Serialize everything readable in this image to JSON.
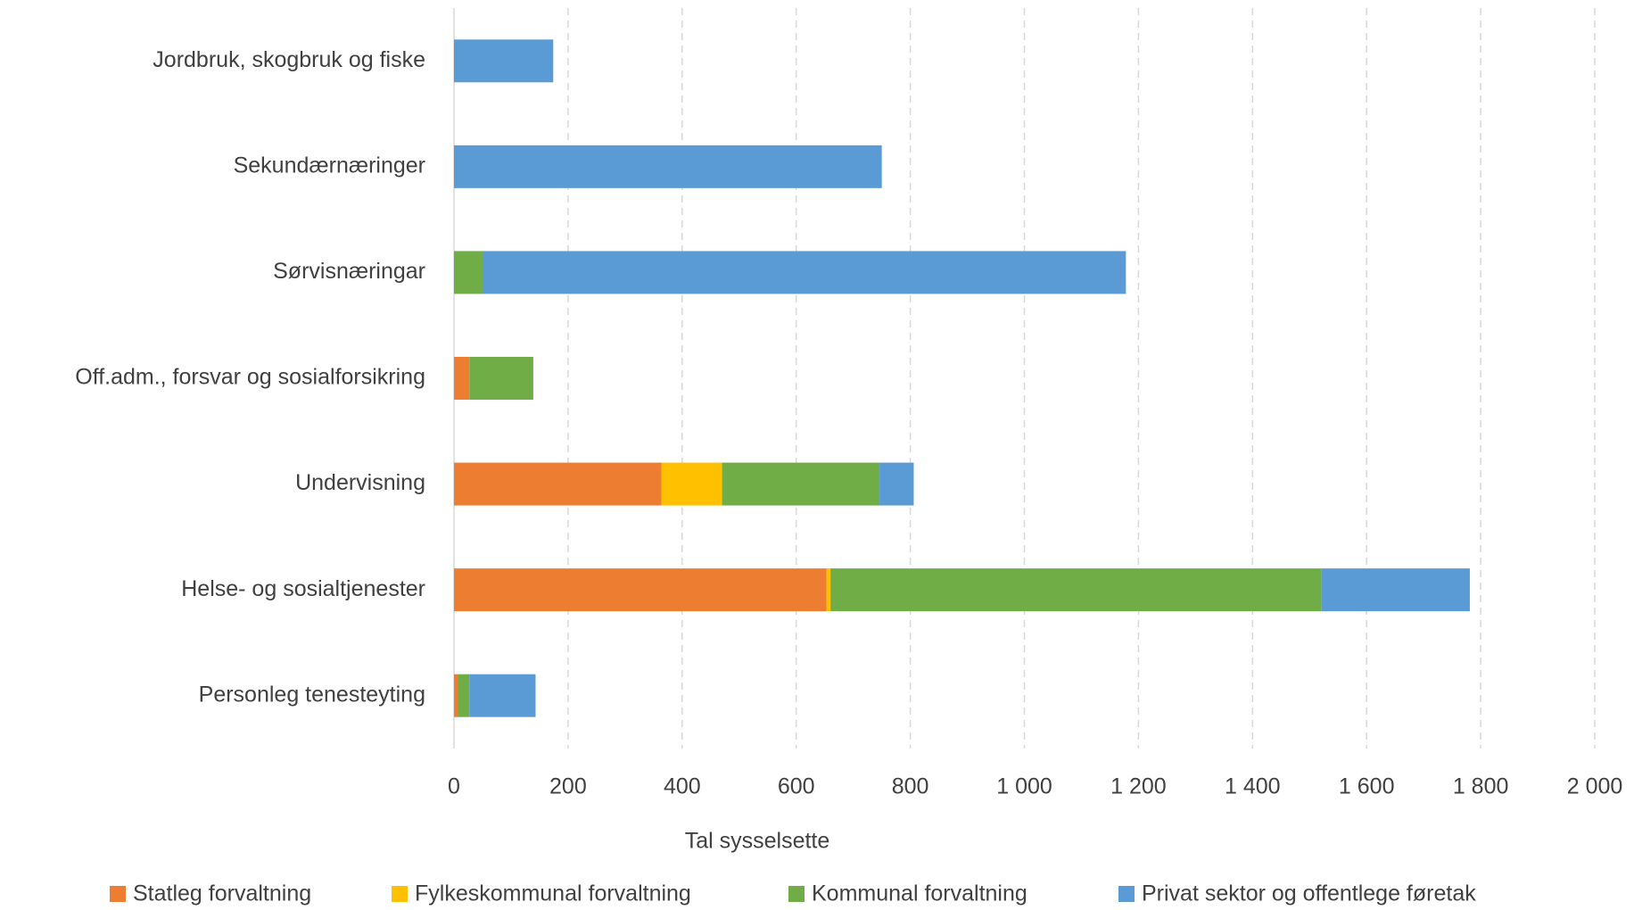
{
  "chart_data": {
    "type": "bar",
    "orientation": "horizontal",
    "stacked": true,
    "x_label": "Tal sysselsette",
    "categories": [
      "Jordbruk, skogbruk og fiske",
      "Sekundærnæringer",
      "Sørvisnæringar",
      "Off.adm., forsvar og sosialforsikring",
      "Undervisning",
      "Helse- og sosialtjenester",
      "Personleg tenesteyting"
    ],
    "series": [
      {
        "name": "Statleg forvaltning",
        "color": "#ed7d31",
        "values": [
          0,
          0,
          0,
          27,
          364,
          653,
          7
        ]
      },
      {
        "name": "Fylkeskommunal forvaltning",
        "color": "#ffc000",
        "values": [
          0,
          0,
          0,
          0,
          106,
          7,
          0
        ]
      },
      {
        "name": "Kommunal forvaltning",
        "color": "#70ad47",
        "values": [
          0,
          0,
          50,
          112,
          276,
          861,
          20
        ]
      },
      {
        "name": "Privat sektor og offentlege føretak",
        "color": "#5b9bd5",
        "values": [
          174,
          750,
          1128,
          0,
          60,
          260,
          116
        ]
      }
    ],
    "xlim": [
      0,
      2000
    ],
    "xticks": [
      0,
      200,
      400,
      600,
      800,
      {
        "value": 1000,
        "label": "1 000"
      },
      {
        "value": 1200,
        "label": "1 200"
      },
      {
        "value": 1400,
        "label": "1 400"
      },
      {
        "value": 1600,
        "label": "1 600"
      },
      {
        "value": 1800,
        "label": "1 800"
      },
      {
        "value": 2000,
        "label": "2 000"
      }
    ],
    "grid": true,
    "legend": "bottom"
  }
}
